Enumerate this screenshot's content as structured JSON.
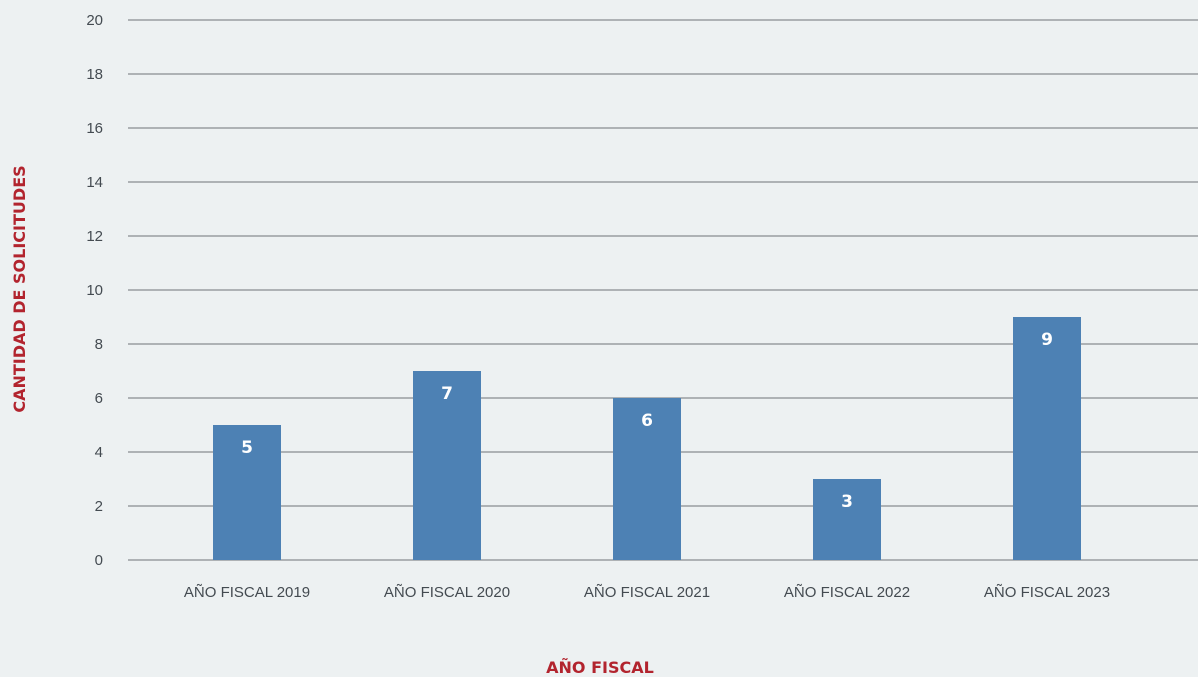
{
  "chart_data": {
    "type": "bar",
    "categories": [
      "AÑO FISCAL 2019",
      "AÑO FISCAL 2020",
      "AÑO FISCAL 2021",
      "AÑO FISCAL 2022",
      "AÑO FISCAL 2023"
    ],
    "values": [
      5,
      7,
      6,
      3,
      9
    ],
    "data_labels": [
      "5",
      "7",
      "6",
      "3",
      "9"
    ],
    "title": "",
    "xlabel": "AÑO FISCAL",
    "ylabel": "CANTIDAD DE SOLICITUDES",
    "ylim": [
      0,
      20
    ],
    "yticks": [
      "0",
      "2",
      "4",
      "6",
      "8",
      "10",
      "12",
      "14",
      "16",
      "18",
      "20"
    ],
    "grid": true,
    "legend": "none",
    "colors": {
      "bar": "#4d81b4",
      "axis_title": "#b2242e",
      "tick_text": "#444b51",
      "gridline": "#6f7478",
      "background": "#edf1f2",
      "data_label": "#ffffff"
    }
  }
}
